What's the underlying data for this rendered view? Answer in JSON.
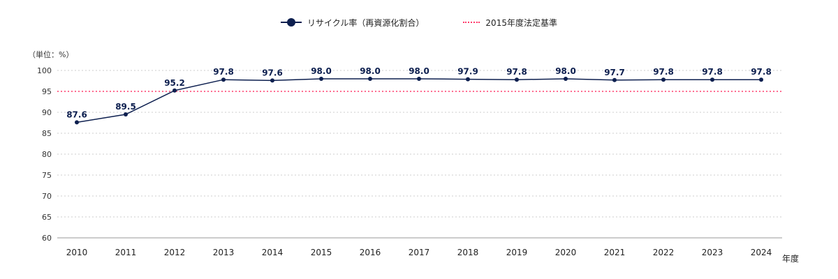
{
  "legend": {
    "series_label": "リサイクル率（再資源化割合）",
    "baseline_label": "2015年度法定基準"
  },
  "unit_label": "（単位：%）",
  "x_unit_label": "年度",
  "colors": {
    "series": "#0d1f4f",
    "baseline": "#ff3b6b",
    "grid": "#cccccc"
  },
  "chart_data": {
    "type": "line",
    "categories": [
      "2010",
      "2011",
      "2012",
      "2013",
      "2014",
      "2015",
      "2016",
      "2017",
      "2018",
      "2019",
      "2020",
      "2021",
      "2022",
      "2023",
      "2024"
    ],
    "series": [
      {
        "name": "リサイクル率（再資源化割合）",
        "values": [
          87.6,
          89.5,
          95.2,
          97.8,
          97.6,
          98.0,
          98.0,
          98.0,
          97.9,
          97.8,
          98.0,
          97.7,
          97.8,
          97.8,
          97.8
        ],
        "labels": [
          "87.6",
          "89.5",
          "95.2",
          "97.8",
          "97.6",
          "98.0",
          "98.0",
          "98.0",
          "97.9",
          "97.8",
          "98.0",
          "97.7",
          "97.8",
          "97.8",
          "97.8"
        ]
      }
    ],
    "baseline": {
      "name": "2015年度法定基準",
      "value": 95
    },
    "yticks": [
      60,
      65,
      70,
      75,
      80,
      85,
      90,
      95,
      100
    ],
    "ylim": [
      60,
      100
    ],
    "grid": true,
    "legend_position": "top-center"
  }
}
